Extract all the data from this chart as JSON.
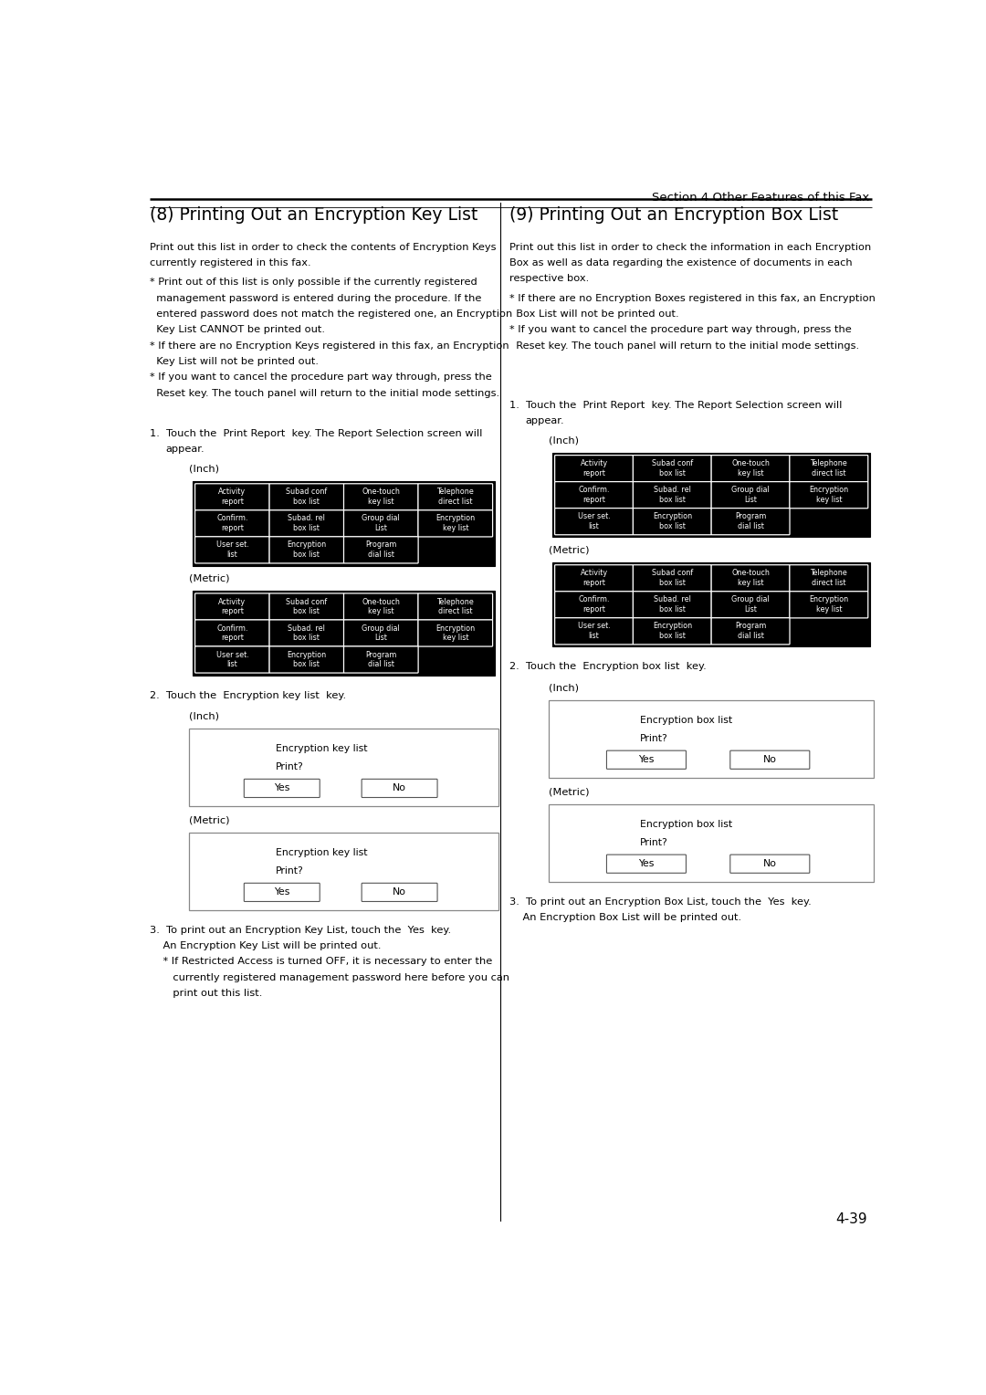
{
  "page_width": 10.8,
  "page_height": 15.28,
  "bg_color": "#ffffff",
  "header_text": "Section 4 Other Features of this Fax",
  "footer_text": "4-39",
  "left_title": "(8) Printing Out an Encryption Key List",
  "right_title": "(9) Printing Out an Encryption Box List",
  "left_intro_lines": [
    "Print out this list in order to check the contents of Encryption Keys",
    "currently registered in this fax."
  ],
  "left_bullets": [
    [
      "* Print out of this list is only possible if the currently registered",
      "  management password is entered during the procedure. If the",
      "  entered password does not match the registered one, an Encryption",
      "  Key List CANNOT be printed out."
    ],
    [
      "* If there are no Encryption Keys registered in this fax, an Encryption",
      "  Key List will not be printed out."
    ],
    [
      "* If you want to cancel the procedure part way through, press the",
      "  Reset key. The touch panel will return to the initial mode settings."
    ]
  ],
  "right_intro_lines": [
    "Print out this list in order to check the information in each Encryption",
    "Box as well as data regarding the existence of documents in each",
    "respective box."
  ],
  "right_bullets": [
    [
      "* If there are no Encryption Boxes registered in this fax, an Encryption",
      "  Box List will not be printed out."
    ],
    [
      "* If you want to cancel the procedure part way through, press the",
      "  Reset key. The touch panel will return to the initial mode settings."
    ]
  ],
  "step1_line1": "1.  Touch the  Print Report  key. The Report Selection screen will",
  "step1_line2": "    appear.",
  "step2_left": "2.  Touch the  Encryption key list  key.",
  "step2_right": "2.  Touch the  Encryption box list  key.",
  "step3_left_lines": [
    "3.  To print out an Encryption Key List, touch the  Yes  key.",
    "    An Encryption Key List will be printed out.",
    "    * If Restricted Access is turned OFF, it is necessary to enter the",
    "       currently registered management password here before you can",
    "       print out this list."
  ],
  "step3_right_lines": [
    "3.  To print out an Encryption Box List, touch the  Yes  key.",
    "    An Encryption Box List will be printed out."
  ],
  "panel_buttons": [
    [
      "Activity\nreport",
      "Subad conf\nbox list",
      "One-touch\nkey list",
      "Telephone\ndirect list"
    ],
    [
      "Confirm.\nreport",
      "Subad. rel\nbox list",
      "Group dial\nList",
      "Encryption\nkey list"
    ],
    [
      "User set.\nlist",
      "Encryption\nbox list",
      "Program\ndial list",
      ""
    ]
  ],
  "inch_label": "(Inch)",
  "metric_label": "(Metric)",
  "dlg_title_left": "Encryption key list",
  "dlg_title_right": "Encryption box list",
  "dlg_subtitle": "Print?"
}
